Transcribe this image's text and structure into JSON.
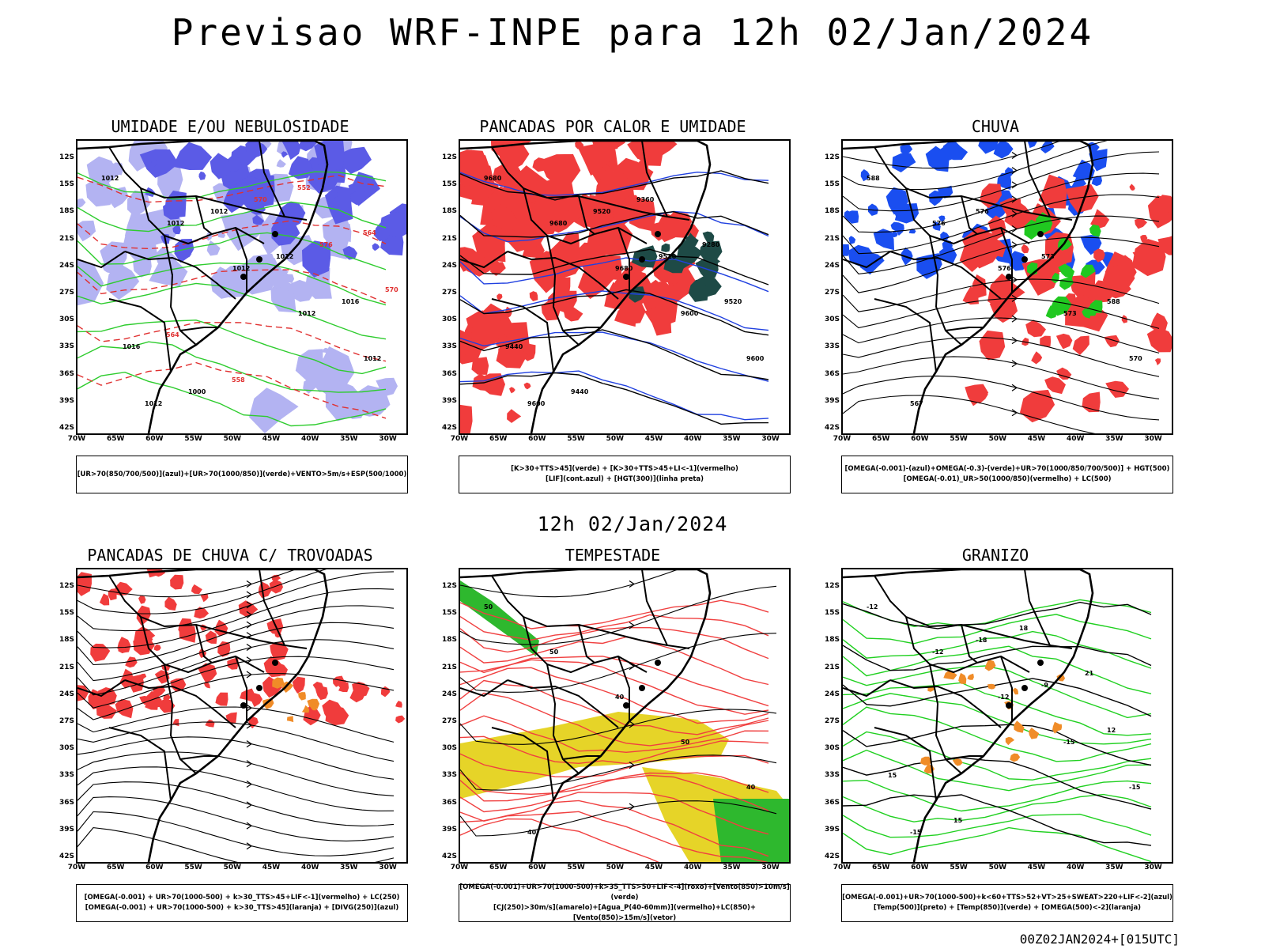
{
  "page": {
    "title": "Previsao WRF-INPE  para 12h 02/Jan/2024",
    "mid_title": "12h 02/Jan/2024",
    "footer": "00Z02JAN2024+[015UTC]"
  },
  "axes": {
    "lat_labels": [
      "12S",
      "15S",
      "18S",
      "21S",
      "24S",
      "27S",
      "30S",
      "33S",
      "36S",
      "39S",
      "42S"
    ],
    "lon_labels": [
      "70W",
      "65W",
      "60W",
      "55W",
      "50W",
      "45W",
      "40W",
      "35W",
      "30W"
    ]
  },
  "panels": [
    {
      "title": "UMIDADE E/OU NEBULOSIDADE",
      "legend": [
        "[UR>70(850/700/500)](azul)+[UR>70(1000/850)](verde)+VENTO>5m/s+ESP(500/1000)"
      ],
      "contour_labels": [
        "1012",
        "1012",
        "1012",
        "1012",
        "1012",
        "1012",
        "1012",
        "1012",
        "1016",
        "1016",
        "1000",
        "570",
        "576",
        "570",
        "564",
        "558",
        "552",
        "564"
      ],
      "colors": {
        "fill1": "#b3b3f2",
        "fill2": "#5b5be6",
        "line1": "#2ecc2e",
        "line2": "#e03030",
        "line3": "#000000"
      }
    },
    {
      "title": "PANCADAS POR CALOR E UMIDADE",
      "legend": [
        "[K>30+TTS>45](verde) + [K>30+TTS>45+LI<-1](vermelho)",
        "[LIF](cont.azul) + [HGT(300)](linha preta)"
      ],
      "contour_labels": [
        "9680",
        "9680",
        "9680",
        "9600",
        "9600",
        "9600",
        "9520",
        "9520",
        "9520",
        "9440",
        "9440",
        "9360",
        "9280"
      ],
      "colors": {
        "fill1": "#f03c3c",
        "fill2": "#1e4a46",
        "line1": "#2040e0",
        "line2": "#000000",
        "line3": "#000000"
      }
    },
    {
      "title": "CHUVA",
      "legend": [
        "[OMEGA(-0.001)-(azul)+OMEGA(-0.3)-(verde)+UR>70(1000/850/700/500)] + HGT(500)",
        "[OMEGA(-0.01)_UR>50(1000/850)(vermelho) + LC(500)"
      ],
      "contour_labels": [
        "588",
        "576",
        "576",
        "573",
        "570",
        "567",
        "576",
        "573",
        "588"
      ],
      "colors": {
        "fill1": "#f03c3c",
        "fill2": "#1a4ef0",
        "line1": "#20c820",
        "line2": "#000000",
        "line3": "#000000"
      }
    },
    {
      "title": "PANCADAS DE CHUVA C/ TROVOADAS",
      "legend": [
        "[OMEGA(-0.001) + UR>70(1000-500) + k>30_TTS>45+LIF<-1](vermelho) + LC(250)",
        "[OMEGA(-0.001) + UR>70(1000-500) + k>30_TTS>45](laranja) + [DIVG(250)](azul)"
      ],
      "contour_labels": [],
      "colors": {
        "fill1": "#f03c3c",
        "fill2": "#f08c28",
        "line1": "#000000",
        "line2": "#000000",
        "line3": "#000000"
      }
    },
    {
      "title": "TEMPESTADE",
      "legend": [
        "[OMEGA(-0.001)+UR>70(1000-500)+k>35_TTS>50+LIF<-4](roxo)+[Vento(850)>10m/s](verde)",
        "[CJ(250)>30m/s](amarelo)+[Agua_P(40-60mm)](vermelho)+LC(850)+[Vento(850)>15m/s](vetor)"
      ],
      "contour_labels": [
        "50",
        "50",
        "40",
        "50",
        "40",
        "40"
      ],
      "colors": {
        "fill1": "#e6d428",
        "fill2": "#2eb82e",
        "line1": "#f04040",
        "line2": "#000000",
        "line3": "#000000"
      }
    },
    {
      "title": "GRANIZO",
      "legend": [
        "[OMEGA(-0.001)+UR>70(1000-500)+k<60+TTS>52+VT>25+SWEAT>220+LIF<-2](azul)",
        "[Temp(500)](preto) + [Temp(850)](verde) + [OMEGA(500)<-2](laranja)"
      ],
      "contour_labels": [
        "-12",
        "-12",
        "-12",
        "-15",
        "-15",
        "-15",
        "-18",
        "-9",
        "12",
        "15",
        "15",
        "18",
        "21"
      ],
      "colors": {
        "fill1": "#f08c28",
        "fill2": "#2040e0",
        "line1": "#20d020",
        "line2": "#000000",
        "line3": "#000000"
      }
    }
  ]
}
